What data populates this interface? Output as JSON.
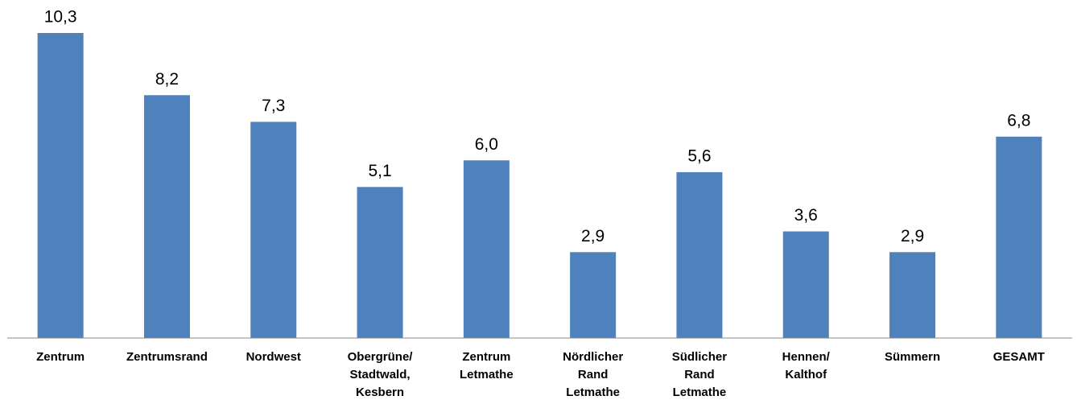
{
  "chart_data": {
    "type": "bar",
    "categories": [
      [
        "Zentrum"
      ],
      [
        "Zentrumsrand"
      ],
      [
        "Nordwest"
      ],
      [
        "Obergrüne/",
        "Stadtwald,",
        "Kesbern"
      ],
      [
        "Zentrum",
        "Letmathe"
      ],
      [
        "Nördlicher",
        "Rand",
        "Letmathe"
      ],
      [
        "Südlicher",
        "Rand",
        "Letmathe"
      ],
      [
        "Hennen/",
        "Kalthof"
      ],
      [
        "Sümmern"
      ],
      [
        "GESAMT"
      ]
    ],
    "values": [
      10.3,
      8.2,
      7.3,
      5.1,
      6.0,
      2.9,
      5.6,
      3.6,
      2.9,
      6.8
    ],
    "value_labels": [
      "10,3",
      "8,2",
      "7,3",
      "5,1",
      "6,0",
      "2,9",
      "5,6",
      "3,6",
      "2,9",
      "6,8"
    ],
    "color": "#4f81bd"
  }
}
